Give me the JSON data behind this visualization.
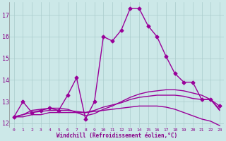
{
  "xlabel": "Windchill (Refroidissement éolien,°C)",
  "bg_color": "#cce8e8",
  "grid_color": "#aacccc",
  "line_color": "#990099",
  "xlim": [
    -0.5,
    23.5
  ],
  "ylim": [
    11.8,
    17.6
  ],
  "yticks": [
    12,
    13,
    14,
    15,
    16,
    17
  ],
  "xticks": [
    0,
    1,
    2,
    3,
    4,
    5,
    6,
    7,
    8,
    9,
    10,
    11,
    12,
    13,
    14,
    15,
    16,
    17,
    18,
    19,
    20,
    21,
    22,
    23
  ],
  "series": [
    {
      "x": [
        0,
        1,
        2,
        3,
        4,
        5,
        6,
        7,
        8,
        9,
        10,
        11,
        12,
        13,
        14,
        15,
        16,
        17,
        18,
        19,
        20,
        21,
        22,
        23
      ],
      "y": [
        12.3,
        13.0,
        12.5,
        12.6,
        12.7,
        12.6,
        13.3,
        14.1,
        12.2,
        13.0,
        16.0,
        15.8,
        16.3,
        17.3,
        17.3,
        16.5,
        16.0,
        15.1,
        14.3,
        13.9,
        13.9,
        13.1,
        13.1,
        12.8
      ],
      "marker": "D",
      "markersize": 2.5,
      "linewidth": 1.0
    },
    {
      "x": [
        0,
        1,
        2,
        3,
        4,
        5,
        6,
        7,
        8,
        9,
        10,
        11,
        12,
        13,
        14,
        15,
        16,
        17,
        18,
        19,
        20,
        21,
        22,
        23
      ],
      "y": [
        12.3,
        12.3,
        12.4,
        12.4,
        12.5,
        12.5,
        12.5,
        12.5,
        12.5,
        12.55,
        12.6,
        12.65,
        12.7,
        12.75,
        12.8,
        12.8,
        12.8,
        12.75,
        12.65,
        12.5,
        12.35,
        12.2,
        12.1,
        11.9
      ],
      "marker": null,
      "markersize": 0,
      "linewidth": 1.0
    },
    {
      "x": [
        0,
        1,
        2,
        3,
        4,
        5,
        6,
        7,
        8,
        9,
        10,
        11,
        12,
        13,
        14,
        15,
        16,
        17,
        18,
        19,
        20,
        21,
        22,
        23
      ],
      "y": [
        12.3,
        12.4,
        12.5,
        12.55,
        12.6,
        12.6,
        12.6,
        12.55,
        12.5,
        12.6,
        12.75,
        12.85,
        12.95,
        13.1,
        13.2,
        13.25,
        13.3,
        13.3,
        13.3,
        13.25,
        13.15,
        13.1,
        13.1,
        12.6
      ],
      "marker": null,
      "markersize": 0,
      "linewidth": 1.0
    },
    {
      "x": [
        0,
        1,
        2,
        3,
        4,
        5,
        6,
        7,
        8,
        9,
        10,
        11,
        12,
        13,
        14,
        15,
        16,
        17,
        18,
        19,
        20,
        21,
        22,
        23
      ],
      "y": [
        12.3,
        12.4,
        12.6,
        12.65,
        12.7,
        12.7,
        12.65,
        12.5,
        12.35,
        12.45,
        12.65,
        12.8,
        13.0,
        13.2,
        13.35,
        13.45,
        13.5,
        13.55,
        13.55,
        13.5,
        13.4,
        13.3,
        13.1,
        12.65
      ],
      "marker": null,
      "markersize": 0,
      "linewidth": 1.0
    }
  ]
}
